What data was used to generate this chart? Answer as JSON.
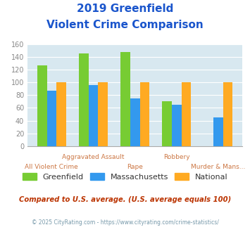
{
  "title_line1": "2019 Greenfield",
  "title_line2": "Violent Crime Comparison",
  "categories": [
    "All Violent Crime",
    "Aggravated Assault",
    "Rape",
    "Robbery",
    "Murder & Mans..."
  ],
  "series": {
    "Greenfield": [
      127,
      145,
      148,
      70,
      0
    ],
    "Massachusetts": [
      87,
      96,
      75,
      65,
      45
    ],
    "National": [
      100,
      100,
      100,
      100,
      100
    ]
  },
  "colors": {
    "Greenfield": "#77cc33",
    "Massachusetts": "#3399ee",
    "National": "#ffaa22"
  },
  "ylim": [
    0,
    160
  ],
  "yticks": [
    0,
    20,
    40,
    60,
    80,
    100,
    120,
    140,
    160
  ],
  "title_color": "#1a55cc",
  "bg_color": "#d8e8f0",
  "footnote1": "Compared to U.S. average. (U.S. average equals 100)",
  "footnote2": "© 2025 CityRating.com - https://www.cityrating.com/crime-statistics/",
  "footnote1_color": "#bb3300",
  "footnote2_color": "#7799aa",
  "xtick_color": "#cc7744",
  "ytick_color": "#888888",
  "stagger_top": [
    false,
    true,
    false,
    true,
    false
  ]
}
